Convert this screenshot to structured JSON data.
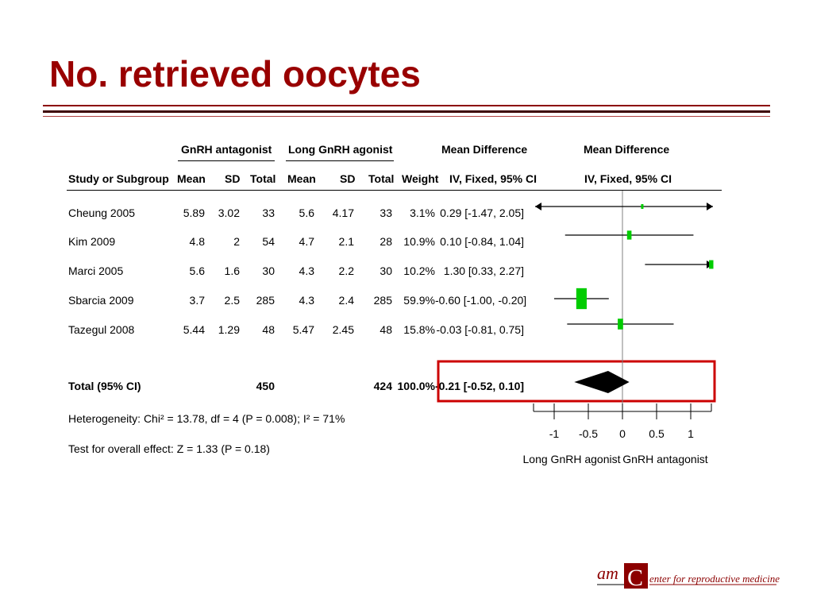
{
  "title": "No. retrieved oocytes",
  "headers": {
    "group_antagonist": "GnRH antagonist",
    "group_agonist": "Long GnRH agonist",
    "md_header1": "Mean Difference",
    "md_header2": "IV, Fixed, 95% CI",
    "plot_header1": "Mean Difference",
    "plot_header2": "IV, Fixed, 95% CI",
    "study": "Study or Subgroup",
    "mean1": "Mean",
    "sd1": "SD",
    "total1": "Total",
    "mean2": "Mean",
    "sd2": "SD",
    "total2": "Total",
    "weight": "Weight"
  },
  "rows": [
    {
      "study": "Cheung 2005",
      "mean1": "5.89",
      "sd1": "3.02",
      "total1": "33",
      "mean2": "5.6",
      "sd2": "4.17",
      "total2": "33",
      "weight": "3.1%",
      "ci_text": "0.29 [-1.47, 2.05]"
    },
    {
      "study": "Kim 2009",
      "mean1": "4.8",
      "sd1": "2",
      "total1": "54",
      "mean2": "4.7",
      "sd2": "2.1",
      "total2": "28",
      "weight": "10.9%",
      "ci_text": "0.10 [-0.84, 1.04]"
    },
    {
      "study": "Marci 2005",
      "mean1": "5.6",
      "sd1": "1.6",
      "total1": "30",
      "mean2": "4.3",
      "sd2": "2.2",
      "total2": "30",
      "weight": "10.2%",
      "ci_text": "1.30 [0.33, 2.27]"
    },
    {
      "study": "Sbarcia 2009",
      "mean1": "3.7",
      "sd1": "2.5",
      "total1": "285",
      "mean2": "4.3",
      "sd2": "2.4",
      "total2": "285",
      "weight": "59.9%",
      "ci_text": "-0.60 [-1.00, -0.20]"
    },
    {
      "study": "Tazegul 2008",
      "mean1": "5.44",
      "sd1": "1.29",
      "total1": "48",
      "mean2": "5.47",
      "sd2": "2.45",
      "total2": "48",
      "weight": "15.8%",
      "ci_text": "-0.03 [-0.81, 0.75]"
    }
  ],
  "total_row": {
    "study": "Total (95% CI)",
    "total1": "450",
    "total2": "424",
    "weight": "100.0%",
    "ci_text": "-0.21 [-0.52, 0.10]"
  },
  "heterogeneity": "Heterogeneity: Chi² = 13.78, df = 4 (P = 0.008); I² = 71%",
  "overall_effect": "Test for overall effect: Z = 1.33 (P = 0.18)",
  "axis_left_label": "Long GnRH agonist",
  "axis_right_label": "GnRH antagonist",
  "logo": {
    "mark": "am",
    "text": "enter for reproductive medicine"
  },
  "colors": {
    "title": "#990000",
    "marker": "#00cc00",
    "highlight": "#cc0000",
    "rule": "#8c0000"
  },
  "chart_data": {
    "type": "forest",
    "xlim": [
      -1,
      1
    ],
    "ticks": [
      -1,
      -0.5,
      0,
      0.5,
      1
    ],
    "tick_labels": [
      "-1",
      "-0.5",
      "0",
      "0.5",
      "1"
    ],
    "studies": [
      {
        "name": "Cheung 2005",
        "md": 0.29,
        "lo": -1.47,
        "hi": 2.05,
        "weight": 3.1
      },
      {
        "name": "Kim 2009",
        "md": 0.1,
        "lo": -0.84,
        "hi": 1.04,
        "weight": 10.9
      },
      {
        "name": "Marci 2005",
        "md": 1.3,
        "lo": 0.33,
        "hi": 2.27,
        "weight": 10.2
      },
      {
        "name": "Sbarcia 2009",
        "md": -0.6,
        "lo": -1.0,
        "hi": -0.2,
        "weight": 59.9
      },
      {
        "name": "Tazegul 2008",
        "md": -0.03,
        "lo": -0.81,
        "hi": 0.75,
        "weight": 15.8
      }
    ],
    "pooled": {
      "md": -0.21,
      "lo": -0.52,
      "hi": 0.1
    }
  }
}
